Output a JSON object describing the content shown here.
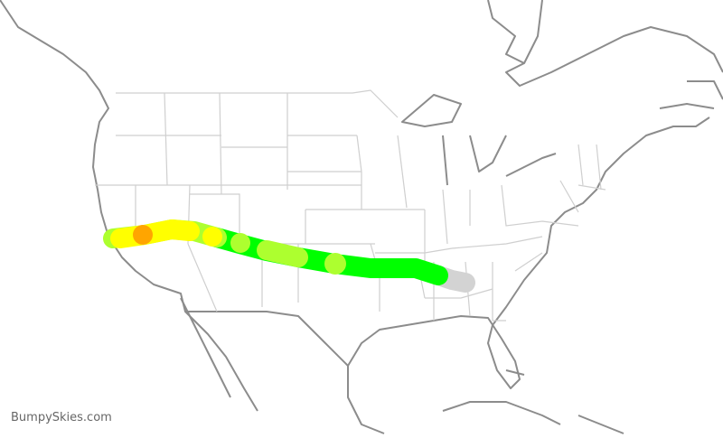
{
  "map": {
    "credit": "BumpySkies.com",
    "colors": {
      "coastline": "#8c8c8c",
      "state_borders": "#cfcfcf",
      "route_smooth": "#00ff00",
      "route_light": "#adff2f",
      "route_moderate": "#ffff00",
      "route_strong": "#ffa500",
      "route_no_data": "#d3d3d3"
    }
  }
}
